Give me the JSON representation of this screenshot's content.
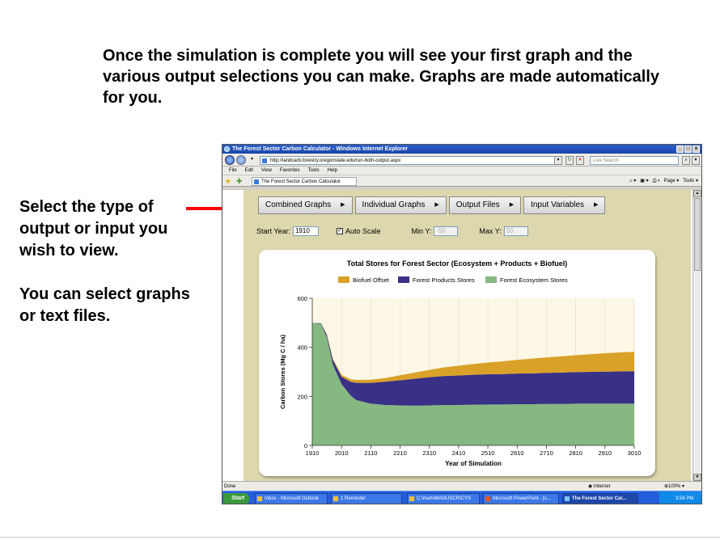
{
  "slide": {
    "heading": "Once the simulation is complete you will see your first graph and the various output selections you can make. Graphs are made automatically for you.",
    "side_lines_1": [
      "Select the type of",
      "output or input you",
      "wish to view."
    ],
    "side_lines_2": [
      "You can select graphs",
      "or text files."
    ],
    "arrow_color": "#ff0000"
  },
  "browser": {
    "title": "The Forest Sector Carbon Calculator - Windows Internet Explorer",
    "url": "http://landcarb.forestry.oregonstate.edu/run-both-output.aspx",
    "search_placeholder": "Live Search",
    "menu": [
      "File",
      "Edit",
      "View",
      "Favorites",
      "Tools",
      "Help"
    ],
    "tab_title": "The Forest Sector Carbon Calculator",
    "cmd_page": "Page",
    "cmd_tools": "Tools",
    "status_left": "Done",
    "zone": "Internet",
    "zoom": "100%"
  },
  "app": {
    "menu_buttons": [
      {
        "label": "Combined Graphs"
      },
      {
        "label": "Individual Graphs"
      },
      {
        "label": "Output Files"
      },
      {
        "label": "Input Variables"
      }
    ],
    "start_year_label": "Start Year:",
    "start_year_value": "1910",
    "auto_scale_label": "Auto Scale",
    "auto_scale_checked": true,
    "min_y_label": "Min Y:",
    "min_y_value": "-50",
    "max_y_label": "Max Y:",
    "max_y_value": "50"
  },
  "taskbar": {
    "start": "Start",
    "items": [
      "Inbox - Microsoft Outlook",
      "1 Reminder",
      "C:\\mark\\MANUSCR\\CYS",
      "Microsoft PowerPoint - [s...",
      "The Forest Sector Car..."
    ],
    "time": "3:56 PM"
  },
  "chart_data": {
    "type": "area",
    "title": "Total Stores for Forest Sector (Ecosystem + Products + Biofuel)",
    "xlabel": "Year of Simulation",
    "ylabel": "Carbon Stores (Mg C / ha)",
    "xlim": [
      1910,
      3010
    ],
    "ylim": [
      0,
      600
    ],
    "x_ticks": [
      1910,
      2010,
      2110,
      2210,
      2310,
      2410,
      2510,
      2610,
      2710,
      2810,
      2910,
      3010
    ],
    "y_ticks": [
      0,
      200,
      400,
      600
    ],
    "legend_position": "top",
    "stacked": true,
    "x": [
      1910,
      1940,
      1960,
      1980,
      2010,
      2040,
      2060,
      2110,
      2160,
      2210,
      2260,
      2310,
      2360,
      2410,
      2460,
      2510,
      2560,
      2610,
      2660,
      2710,
      2760,
      2810,
      2860,
      2910,
      2960,
      3010
    ],
    "series": [
      {
        "name": "Forest Ecosystem Stores",
        "color": "#86b882",
        "values": [
          500,
          495,
          440,
          330,
          250,
          205,
          185,
          170,
          165,
          163,
          162,
          163,
          165,
          165,
          166,
          167,
          167,
          168,
          168,
          169,
          169,
          170,
          170,
          170,
          170,
          170
        ]
      },
      {
        "name": "Forest Products Stores",
        "color": "#3a3186",
        "values": [
          0,
          3,
          10,
          20,
          30,
          55,
          70,
          85,
          95,
          103,
          110,
          115,
          118,
          120,
          122,
          123,
          124,
          125,
          126,
          127,
          128,
          129,
          130,
          131,
          132,
          133
        ]
      },
      {
        "name": "Biofuel Offset",
        "color": "#d9a128",
        "values": [
          0,
          0,
          2,
          5,
          8,
          10,
          12,
          13,
          15,
          20,
          25,
          30,
          35,
          40,
          44,
          48,
          52,
          56,
          60,
          63,
          66,
          69,
          72,
          75,
          77,
          79
        ]
      }
    ]
  }
}
